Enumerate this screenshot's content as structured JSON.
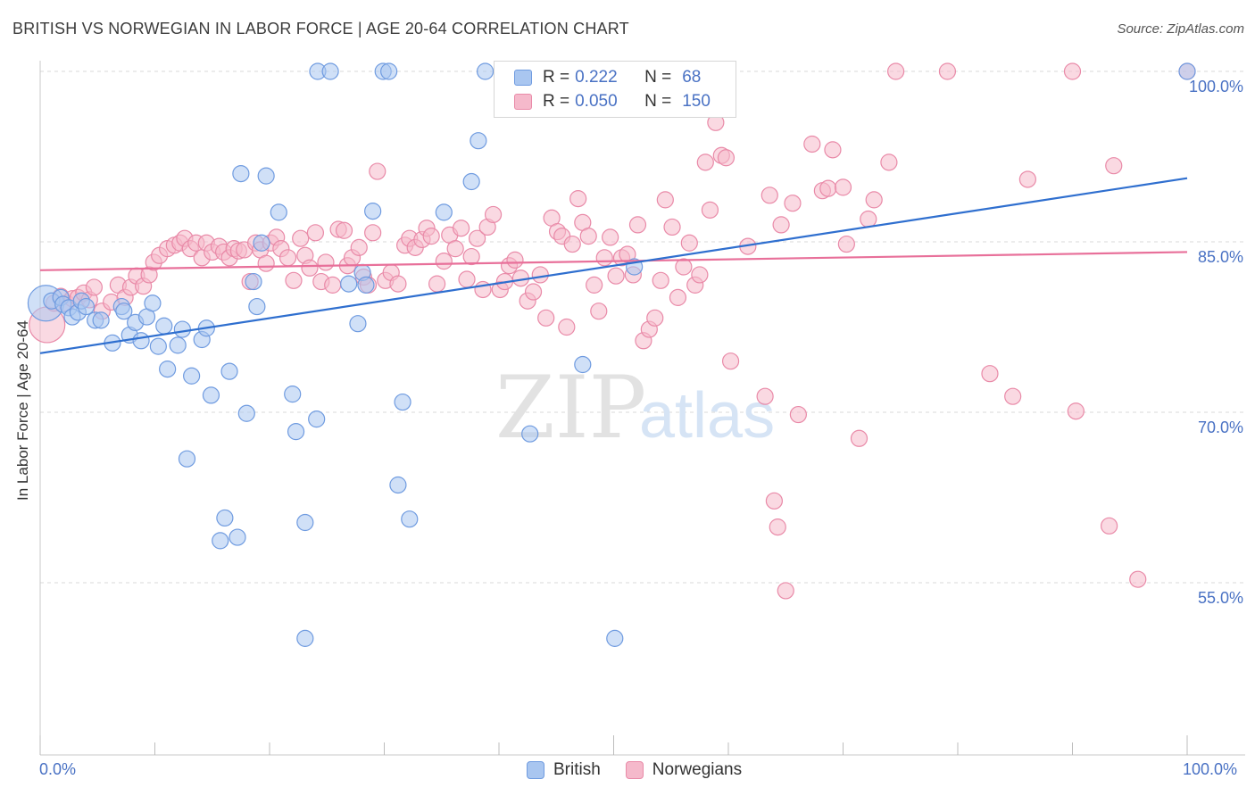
{
  "title": "BRITISH VS NORWEGIAN IN LABOR FORCE | AGE 20-64 CORRELATION CHART",
  "source": "Source: ZipAtlas.com",
  "watermark": {
    "zip": "ZIP",
    "atlas": "atlas"
  },
  "colors": {
    "british_fill": "#a9c6f0",
    "british_stroke": "#6f9be0",
    "british_line": "#2f6fcf",
    "norwegian_fill": "#f5b9cb",
    "norwegian_stroke": "#e98aa8",
    "norwegian_line": "#e8709a",
    "tick_label": "#4a72c4",
    "grid": "#d9d9d9"
  },
  "legend": {
    "rows": [
      {
        "r_label": "R =",
        "r_value": "0.222",
        "n_label": "N =",
        "n_value": "68",
        "series": "British"
      },
      {
        "r_label": "R =",
        "r_value": "0.050",
        "n_label": "N =",
        "n_value": "150",
        "series": "Norwegians"
      }
    ]
  },
  "chart_data": {
    "type": "scatter",
    "title": "BRITISH VS NORWEGIAN IN LABOR FORCE | AGE 20-64 CORRELATION CHART",
    "xlabel": "",
    "ylabel": "In Labor Force | Age 20-64",
    "xlim": [
      0,
      100
    ],
    "ylim": [
      37,
      101.5
    ],
    "x_tick_labels": [
      "0.0%",
      "100.0%"
    ],
    "y_ticks": [
      100,
      85,
      70,
      55
    ],
    "y_tick_labels": [
      "100.0%",
      "85.0%",
      "70.0%",
      "55.0%"
    ],
    "grid": true,
    "legend_placement": "top-center",
    "series": [
      {
        "name": "British",
        "trend": {
          "x": [
            0,
            100
          ],
          "y": [
            75.2,
            90.6
          ]
        },
        "points": [
          [
            0.5,
            79.6
          ],
          [
            1,
            79.8
          ],
          [
            1.8,
            80.1
          ],
          [
            2,
            79.5
          ],
          [
            2.5,
            79.2
          ],
          [
            2.8,
            78.4
          ],
          [
            3.3,
            78.8
          ],
          [
            3.6,
            79.8
          ],
          [
            4,
            79.3
          ],
          [
            4.8,
            78.1
          ],
          [
            5.3,
            78.1
          ],
          [
            6.3,
            76.1
          ],
          [
            7.1,
            79.3
          ],
          [
            7.3,
            78.9
          ],
          [
            7.8,
            76.8
          ],
          [
            8.3,
            77.9
          ],
          [
            8.8,
            76.3
          ],
          [
            9.3,
            78.4
          ],
          [
            9.8,
            79.6
          ],
          [
            10.3,
            75.8
          ],
          [
            10.8,
            77.6
          ],
          [
            11.1,
            73.8
          ],
          [
            12,
            75.9
          ],
          [
            12.4,
            77.3
          ],
          [
            12.8,
            65.9
          ],
          [
            13.2,
            73.2
          ],
          [
            14.1,
            76.4
          ],
          [
            14.5,
            77.4
          ],
          [
            14.9,
            71.5
          ],
          [
            15.7,
            58.7
          ],
          [
            16.1,
            60.7
          ],
          [
            16.5,
            73.6
          ],
          [
            17.2,
            59.0
          ],
          [
            17.5,
            91.0
          ],
          [
            18,
            69.9
          ],
          [
            18.6,
            81.5
          ],
          [
            18.9,
            79.3
          ],
          [
            19.3,
            84.9
          ],
          [
            19.7,
            90.8
          ],
          [
            20.8,
            87.6
          ],
          [
            22,
            71.6
          ],
          [
            22.3,
            68.3
          ],
          [
            23.1,
            50.1
          ],
          [
            23.1,
            60.3
          ],
          [
            24.1,
            69.4
          ],
          [
            24.2,
            100
          ],
          [
            25.3,
            100
          ],
          [
            26.9,
            81.3
          ],
          [
            27.7,
            77.8
          ],
          [
            28.1,
            82.3
          ],
          [
            28.4,
            81.2
          ],
          [
            29,
            87.7
          ],
          [
            29.9,
            100
          ],
          [
            30.4,
            100
          ],
          [
            31.2,
            63.6
          ],
          [
            31.6,
            70.9
          ],
          [
            32.2,
            60.6
          ],
          [
            35.2,
            87.6
          ],
          [
            37.6,
            90.3
          ],
          [
            38.2,
            93.9
          ],
          [
            38.8,
            100
          ],
          [
            42.7,
            68.1
          ],
          [
            47.3,
            74.2
          ],
          [
            50.1,
            50.1
          ],
          [
            51.8,
            82.8
          ],
          [
            100,
            100
          ]
        ]
      },
      {
        "name": "Norwegians",
        "trend": {
          "x": [
            0,
            100
          ],
          "y": [
            82.5,
            84.1
          ]
        },
        "points": [
          [
            0.6,
            77.7
          ],
          [
            1.2,
            79.6
          ],
          [
            1.8,
            80.2
          ],
          [
            2.3,
            79.6
          ],
          [
            2.8,
            80.0
          ],
          [
            3.3,
            80.1
          ],
          [
            3.8,
            80.5
          ],
          [
            4.3,
            79.9
          ],
          [
            4.7,
            81.0
          ],
          [
            5.4,
            78.9
          ],
          [
            6.2,
            79.7
          ],
          [
            6.8,
            81.2
          ],
          [
            7.4,
            80.1
          ],
          [
            7.9,
            81.0
          ],
          [
            8.4,
            82.0
          ],
          [
            9.0,
            81.1
          ],
          [
            9.5,
            82.1
          ],
          [
            9.9,
            83.2
          ],
          [
            10.4,
            83.8
          ],
          [
            11.1,
            84.4
          ],
          [
            11.7,
            84.7
          ],
          [
            12.2,
            84.9
          ],
          [
            12.6,
            85.3
          ],
          [
            13.1,
            84.4
          ],
          [
            13.6,
            84.9
          ],
          [
            14.1,
            83.6
          ],
          [
            14.5,
            84.9
          ],
          [
            15.0,
            84.1
          ],
          [
            15.6,
            84.6
          ],
          [
            16.0,
            84.1
          ],
          [
            16.5,
            83.6
          ],
          [
            16.9,
            84.4
          ],
          [
            17.3,
            84.2
          ],
          [
            17.8,
            84.3
          ],
          [
            18.3,
            81.5
          ],
          [
            18.8,
            84.9
          ],
          [
            19.2,
            84.3
          ],
          [
            19.7,
            83.1
          ],
          [
            20.1,
            84.9
          ],
          [
            20.6,
            85.4
          ],
          [
            21.0,
            84.4
          ],
          [
            21.6,
            83.6
          ],
          [
            22.1,
            81.6
          ],
          [
            22.7,
            85.3
          ],
          [
            23.1,
            83.8
          ],
          [
            23.5,
            82.7
          ],
          [
            24.0,
            85.8
          ],
          [
            24.5,
            81.5
          ],
          [
            24.9,
            83.2
          ],
          [
            25.5,
            81.2
          ],
          [
            26.0,
            86.1
          ],
          [
            26.5,
            86.0
          ],
          [
            26.8,
            82.9
          ],
          [
            27.2,
            83.6
          ],
          [
            27.8,
            84.5
          ],
          [
            28.2,
            81.9
          ],
          [
            28.6,
            81.2
          ],
          [
            29.0,
            85.8
          ],
          [
            29.4,
            91.2
          ],
          [
            30.1,
            81.6
          ],
          [
            30.6,
            82.3
          ],
          [
            31.2,
            81.3
          ],
          [
            31.8,
            84.7
          ],
          [
            32.2,
            85.3
          ],
          [
            32.7,
            84.5
          ],
          [
            33.3,
            85.2
          ],
          [
            33.7,
            86.2
          ],
          [
            34.1,
            85.5
          ],
          [
            34.6,
            81.3
          ],
          [
            35.2,
            83.3
          ],
          [
            35.7,
            85.6
          ],
          [
            36.2,
            84.4
          ],
          [
            36.7,
            86.2
          ],
          [
            37.2,
            81.7
          ],
          [
            37.6,
            83.7
          ],
          [
            38.1,
            85.3
          ],
          [
            38.6,
            80.8
          ],
          [
            39.0,
            86.3
          ],
          [
            39.5,
            87.4
          ],
          [
            40.1,
            80.8
          ],
          [
            40.5,
            81.5
          ],
          [
            40.9,
            82.9
          ],
          [
            41.4,
            83.4
          ],
          [
            41.9,
            81.8
          ],
          [
            42.5,
            79.8
          ],
          [
            43.0,
            80.6
          ],
          [
            43.6,
            82.1
          ],
          [
            44.1,
            78.3
          ],
          [
            44.6,
            87.1
          ],
          [
            45.1,
            85.9
          ],
          [
            45.5,
            85.5
          ],
          [
            45.9,
            77.5
          ],
          [
            46.4,
            84.8
          ],
          [
            46.9,
            88.8
          ],
          [
            47.3,
            86.7
          ],
          [
            47.8,
            85.5
          ],
          [
            48.3,
            81.2
          ],
          [
            48.7,
            78.9
          ],
          [
            49.2,
            83.6
          ],
          [
            49.7,
            85.4
          ],
          [
            50.2,
            82.0
          ],
          [
            50.7,
            83.6
          ],
          [
            51.2,
            83.9
          ],
          [
            51.7,
            82.1
          ],
          [
            52.1,
            86.5
          ],
          [
            52.6,
            76.3
          ],
          [
            53.1,
            77.3
          ],
          [
            53.6,
            78.3
          ],
          [
            54.1,
            81.6
          ],
          [
            54.5,
            88.7
          ],
          [
            55.1,
            86.3
          ],
          [
            55.6,
            80.1
          ],
          [
            56.1,
            82.8
          ],
          [
            56.6,
            84.9
          ],
          [
            57.1,
            81.2
          ],
          [
            57.5,
            82.1
          ],
          [
            58.0,
            92.0
          ],
          [
            58.4,
            87.8
          ],
          [
            58.9,
            95.5
          ],
          [
            59.4,
            92.6
          ],
          [
            59.8,
            92.4
          ],
          [
            60.2,
            74.5
          ],
          [
            61.7,
            84.6
          ],
          [
            63.2,
            71.4
          ],
          [
            63.6,
            89.1
          ],
          [
            64.0,
            62.2
          ],
          [
            64.3,
            59.9
          ],
          [
            64.6,
            86.5
          ],
          [
            65.0,
            54.3
          ],
          [
            65.6,
            88.4
          ],
          [
            66.1,
            69.8
          ],
          [
            67.3,
            93.6
          ],
          [
            68.2,
            89.5
          ],
          [
            68.7,
            89.7
          ],
          [
            69.1,
            93.1
          ],
          [
            70.0,
            89.8
          ],
          [
            70.3,
            84.8
          ],
          [
            71.4,
            67.7
          ],
          [
            72.2,
            87.0
          ],
          [
            72.7,
            88.7
          ],
          [
            74.0,
            92.0
          ],
          [
            74.6,
            100
          ],
          [
            79.1,
            100
          ],
          [
            82.8,
            73.4
          ],
          [
            84.8,
            71.4
          ],
          [
            86.1,
            90.5
          ],
          [
            90.0,
            100
          ],
          [
            90.3,
            70.1
          ],
          [
            93.2,
            60.0
          ],
          [
            93.6,
            91.7
          ],
          [
            95.7,
            55.3
          ],
          [
            100,
            100
          ]
        ]
      }
    ]
  }
}
